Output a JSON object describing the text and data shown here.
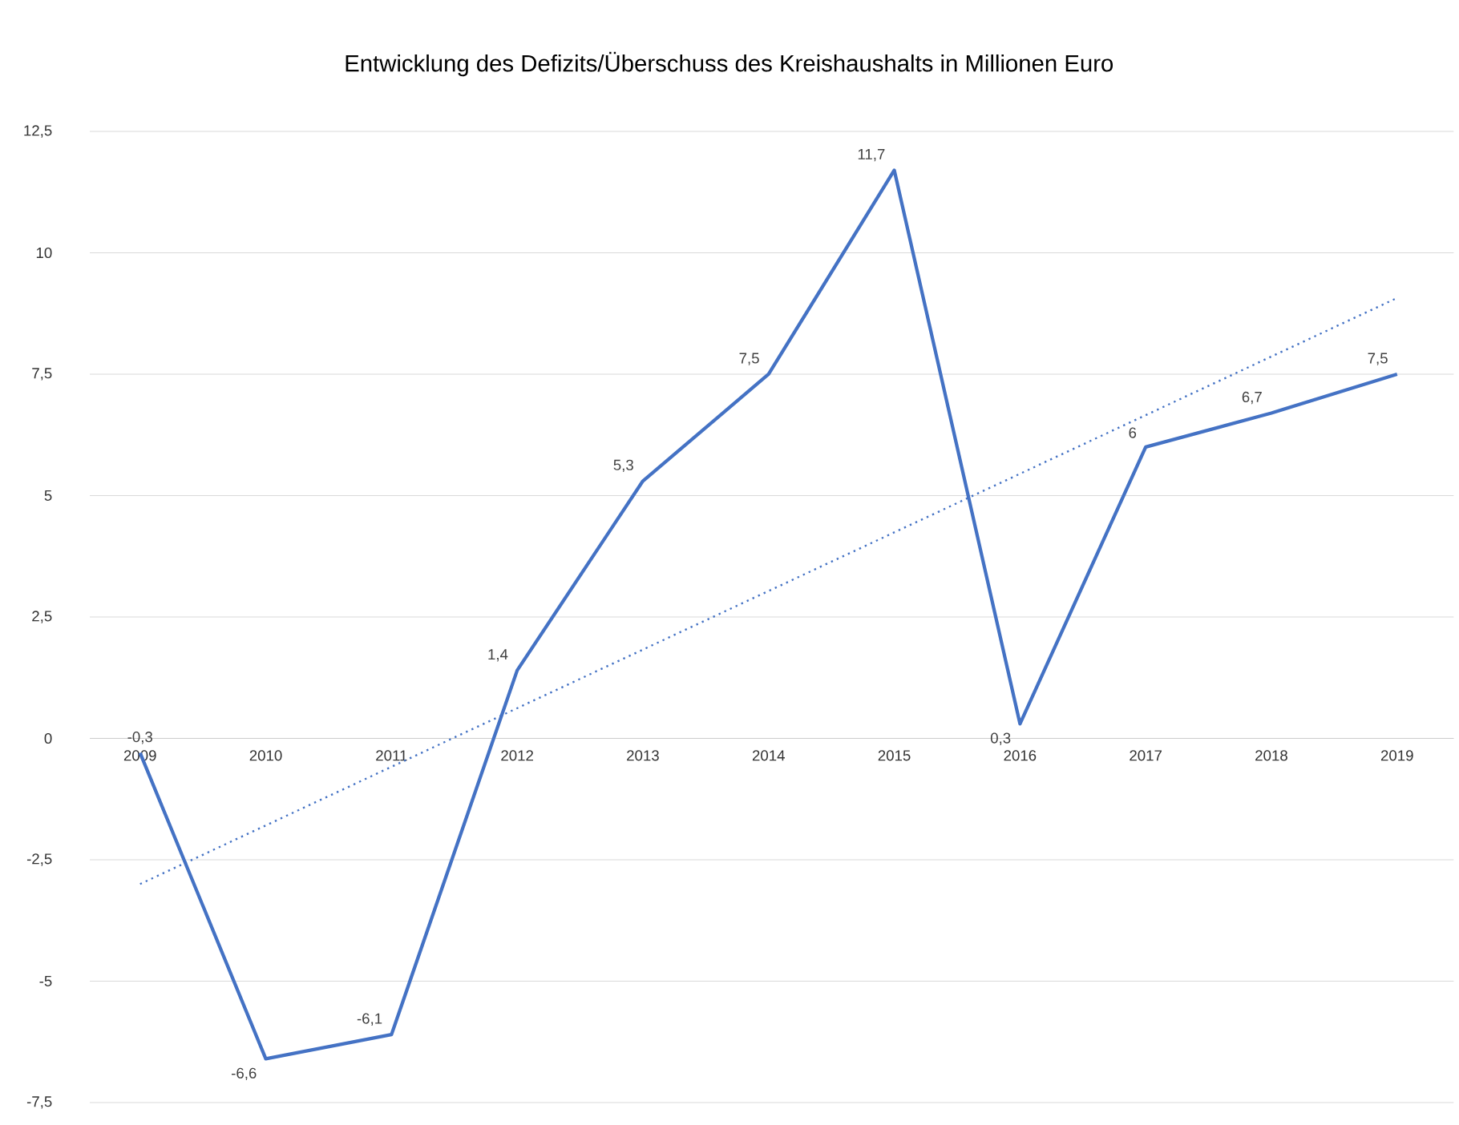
{
  "chart_data": {
    "type": "line",
    "title": "Entwicklung des Defizits/Überschuss des Kreishaushalts in Millionen Euro",
    "x": [
      2009,
      2010,
      2011,
      2012,
      2013,
      2014,
      2015,
      2016,
      2017,
      2018,
      2019
    ],
    "series": [
      {
        "color": "#4472c4",
        "values": [
          -0.3,
          -6.6,
          -6.1,
          1.4,
          5.3,
          7.5,
          11.7,
          0.3,
          6,
          6.7,
          7.5
        ],
        "value_labels": [
          "-0,3",
          "-6,6",
          "-6,1",
          "1,4",
          "5,3",
          "7,5",
          "11,7",
          "0,3",
          "6",
          "6,7",
          "7,5"
        ]
      },
      {
        "type": "line",
        "color": "#4472c4",
        "line_style": "dotted",
        "x": [
          2009,
          2019
        ],
        "values": [
          -3.0,
          9.07
        ]
      }
    ],
    "xlim": [
      2008.6,
      2019.45
    ],
    "xticks": [
      2009,
      2010,
      2011,
      2012,
      2013,
      2014,
      2015,
      2016,
      2017,
      2018,
      2019
    ],
    "ylim": [
      -7.5,
      12.5
    ],
    "yticks": [
      {
        "value": -7.5,
        "label": "-7,5"
      },
      {
        "value": -5,
        "label": "-5"
      },
      {
        "value": -2.5,
        "label": "-2,5"
      },
      {
        "value": 0,
        "label": "0"
      },
      {
        "value": 2.5,
        "label": "2,5"
      },
      {
        "value": 5,
        "label": "5"
      },
      {
        "value": 7.5,
        "label": "7,5"
      },
      {
        "value": 10,
        "label": "10"
      },
      {
        "value": 12.5,
        "label": "12,5"
      }
    ],
    "grid": "y"
  }
}
